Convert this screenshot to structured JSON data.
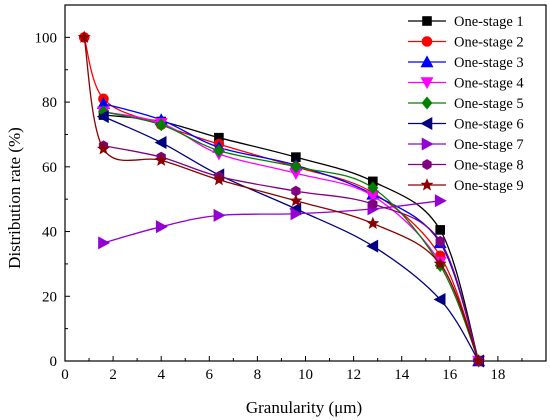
{
  "chart_data": {
    "type": "line",
    "title": "",
    "xlabel": "Granularity (μm)",
    "ylabel": "Distribution rate (%)",
    "xlim": [
      0,
      20
    ],
    "ylim": [
      0,
      110
    ],
    "xticks": [
      "0",
      "2",
      "4",
      "6",
      "8",
      "10",
      "12",
      "14",
      "16",
      "18"
    ],
    "yticks": [
      "0",
      "20",
      "40",
      "60",
      "80",
      "100"
    ],
    "legend_position": "top-right",
    "grid": false,
    "series": [
      {
        "name": "One-stage 1",
        "color": "#000000",
        "marker": "square",
        "x": [
          1.6,
          4.0,
          6.4,
          9.6,
          12.8,
          15.6,
          17.2
        ],
        "y": [
          76,
          74,
          69,
          63,
          55.5,
          40.5,
          0
        ]
      },
      {
        "name": "One-stage 2",
        "color": "#ff0000",
        "marker": "circle",
        "x": [
          0.8,
          1.6,
          4.0,
          6.4,
          9.6,
          12.8,
          15.6,
          17.2
        ],
        "y": [
          100,
          81,
          73,
          67,
          60,
          52,
          32.5,
          0
        ]
      },
      {
        "name": "One-stage 3",
        "color": "#0000ff",
        "marker": "triangle-up",
        "x": [
          1.6,
          4.0,
          6.4,
          9.6,
          12.8,
          15.6,
          17.2
        ],
        "y": [
          79.5,
          74.5,
          66,
          60.5,
          51.5,
          36.5,
          0
        ]
      },
      {
        "name": "One-stage 4",
        "color": "#ff00ff",
        "marker": "triangle-down",
        "x": [
          1.6,
          4.0,
          6.4,
          9.6,
          12.8,
          15.6,
          17.2
        ],
        "y": [
          77,
          73.5,
          64,
          58,
          51,
          30.5,
          0
        ]
      },
      {
        "name": "One-stage 5",
        "color": "#008000",
        "marker": "diamond",
        "x": [
          1.6,
          4.0,
          6.4,
          9.6,
          12.8,
          15.6,
          17.2
        ],
        "y": [
          77,
          73,
          65,
          60,
          53.5,
          29.5,
          0
        ]
      },
      {
        "name": "One-stage 6",
        "color": "#000080",
        "marker": "triangle-left",
        "x": [
          1.6,
          4.0,
          6.4,
          9.6,
          12.8,
          15.6,
          17.2
        ],
        "y": [
          75.5,
          67.5,
          57.5,
          47,
          35.5,
          19,
          0
        ]
      },
      {
        "name": "One-stage 7",
        "color": "#9400d3",
        "marker": "triangle-right",
        "x": [
          1.6,
          4.0,
          6.4,
          9.6,
          12.8,
          15.6
        ],
        "y": [
          36.5,
          41.5,
          45,
          45.5,
          47,
          49.5
        ]
      },
      {
        "name": "One-stage 8",
        "color": "#800080",
        "marker": "hexagon",
        "x": [
          1.6,
          4.0,
          6.4,
          9.6,
          12.8,
          15.6,
          17.2
        ],
        "y": [
          66.5,
          63,
          57,
          52.5,
          48.5,
          37,
          0
        ]
      },
      {
        "name": "One-stage 9",
        "color": "#8b0000",
        "marker": "star",
        "x": [
          0.8,
          1.6,
          4.0,
          6.4,
          9.6,
          12.8,
          15.6,
          17.2
        ],
        "y": [
          100,
          65.5,
          62,
          56,
          49.5,
          42.5,
          30,
          0
        ]
      }
    ]
  }
}
